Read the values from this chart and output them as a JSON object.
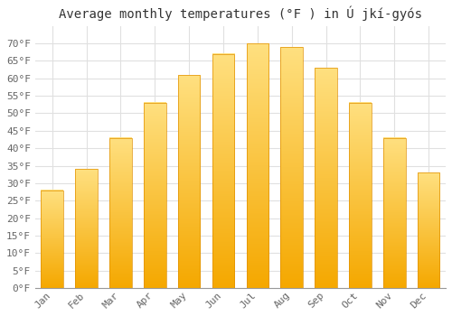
{
  "title": "Average monthly temperatures (°F ) in Ú jkí-gyós",
  "months": [
    "Jan",
    "Feb",
    "Mar",
    "Apr",
    "May",
    "Jun",
    "Jul",
    "Aug",
    "Sep",
    "Oct",
    "Nov",
    "Dec"
  ],
  "values": [
    28,
    34,
    43,
    53,
    61,
    67,
    70,
    69,
    63,
    53,
    43,
    33
  ],
  "bar_color_bottom": "#F5A800",
  "bar_color_top": "#FFE080",
  "bar_edge_color": "#E09000",
  "ylim": [
    0,
    75
  ],
  "yticks": [
    0,
    5,
    10,
    15,
    20,
    25,
    30,
    35,
    40,
    45,
    50,
    55,
    60,
    65,
    70
  ],
  "ytick_labels": [
    "0°F",
    "5°F",
    "10°F",
    "15°F",
    "20°F",
    "25°F",
    "30°F",
    "35°F",
    "40°F",
    "45°F",
    "50°F",
    "55°F",
    "60°F",
    "65°F",
    "70°F"
  ],
  "background_color": "#FFFFFF",
  "grid_color": "#E0E0E0",
  "title_fontsize": 10,
  "tick_fontsize": 8,
  "font_family": "monospace",
  "bar_width": 0.65
}
